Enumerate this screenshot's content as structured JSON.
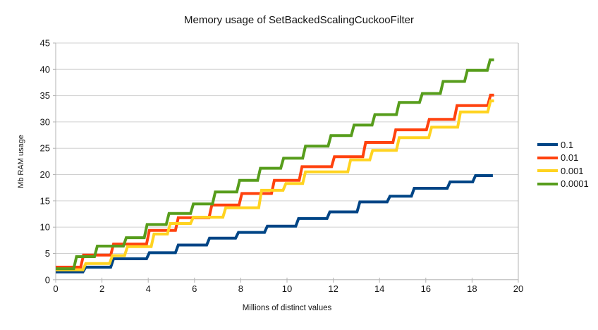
{
  "chart_data": {
    "type": "line",
    "title": "Memory usage of SetBackedScalingCuckooFilter",
    "xlabel": "Millions of distinct values",
    "ylabel": "Mb RAM usage",
    "xlim": [
      0,
      20
    ],
    "ylim": [
      0,
      45
    ],
    "x_ticks": [
      0,
      2,
      4,
      6,
      8,
      10,
      12,
      14,
      16,
      18,
      20
    ],
    "y_ticks": [
      0,
      5,
      10,
      15,
      20,
      25,
      30,
      35,
      40,
      45
    ],
    "grid": "horizontal",
    "legend_position": "right",
    "interpolation": "step-after",
    "axis_color": "#b3b3b3",
    "grid_color": "#d0d0d0",
    "series": [
      {
        "name": "0.1",
        "color": "#004586",
        "end_x": 18.9,
        "points": [
          [
            0,
            1.5
          ],
          [
            1.3,
            2.4
          ],
          [
            2.5,
            4.0
          ],
          [
            4.05,
            5.15
          ],
          [
            5.3,
            6.6
          ],
          [
            6.65,
            7.9
          ],
          [
            7.9,
            9.0
          ],
          [
            9.15,
            10.2
          ],
          [
            10.5,
            11.65
          ],
          [
            11.85,
            12.9
          ],
          [
            13.15,
            14.8
          ],
          [
            14.45,
            15.9
          ],
          [
            15.5,
            17.4
          ],
          [
            17.05,
            18.6
          ],
          [
            18.15,
            19.8
          ]
        ]
      },
      {
        "name": "0.01",
        "color": "#FF420E",
        "end_x": 18.95,
        "points": [
          [
            0,
            2.4
          ],
          [
            1.2,
            4.7
          ],
          [
            2.5,
            6.8
          ],
          [
            4.05,
            9.4
          ],
          [
            5.3,
            11.8
          ],
          [
            6.75,
            14.2
          ],
          [
            8.05,
            16.4
          ],
          [
            9.45,
            18.9
          ],
          [
            10.65,
            21.5
          ],
          [
            12.05,
            23.4
          ],
          [
            13.4,
            26.1
          ],
          [
            14.7,
            28.5
          ],
          [
            16.15,
            30.5
          ],
          [
            17.35,
            33.1
          ],
          [
            18.8,
            35.1
          ]
        ]
      },
      {
        "name": "0.001",
        "color": "#FFD320",
        "end_x": 18.95,
        "points": [
          [
            0,
            1.9
          ],
          [
            1.3,
            3.1
          ],
          [
            2.45,
            4.6
          ],
          [
            3.1,
            6.3
          ],
          [
            4.25,
            8.7
          ],
          [
            4.95,
            10.7
          ],
          [
            5.95,
            11.9
          ],
          [
            7.35,
            13.7
          ],
          [
            8.9,
            17.0
          ],
          [
            9.95,
            18.3
          ],
          [
            10.8,
            20.5
          ],
          [
            12.75,
            22.8
          ],
          [
            13.7,
            24.6
          ],
          [
            14.85,
            27.0
          ],
          [
            16.25,
            29.0
          ],
          [
            17.5,
            31.9
          ],
          [
            18.8,
            34.0
          ]
        ]
      },
      {
        "name": "0.0001",
        "color": "#579D1C",
        "end_x": 18.95,
        "points": [
          [
            0,
            2.1
          ],
          [
            0.9,
            4.4
          ],
          [
            1.8,
            6.4
          ],
          [
            3.05,
            8.0
          ],
          [
            3.95,
            10.5
          ],
          [
            4.9,
            12.6
          ],
          [
            5.95,
            14.4
          ],
          [
            6.9,
            16.7
          ],
          [
            7.95,
            18.9
          ],
          [
            8.85,
            21.2
          ],
          [
            9.85,
            23.1
          ],
          [
            10.8,
            25.4
          ],
          [
            11.9,
            27.4
          ],
          [
            12.9,
            29.4
          ],
          [
            13.8,
            31.4
          ],
          [
            14.85,
            33.7
          ],
          [
            15.85,
            35.4
          ],
          [
            16.75,
            37.7
          ],
          [
            17.8,
            39.8
          ],
          [
            18.78,
            41.8
          ]
        ]
      }
    ]
  }
}
